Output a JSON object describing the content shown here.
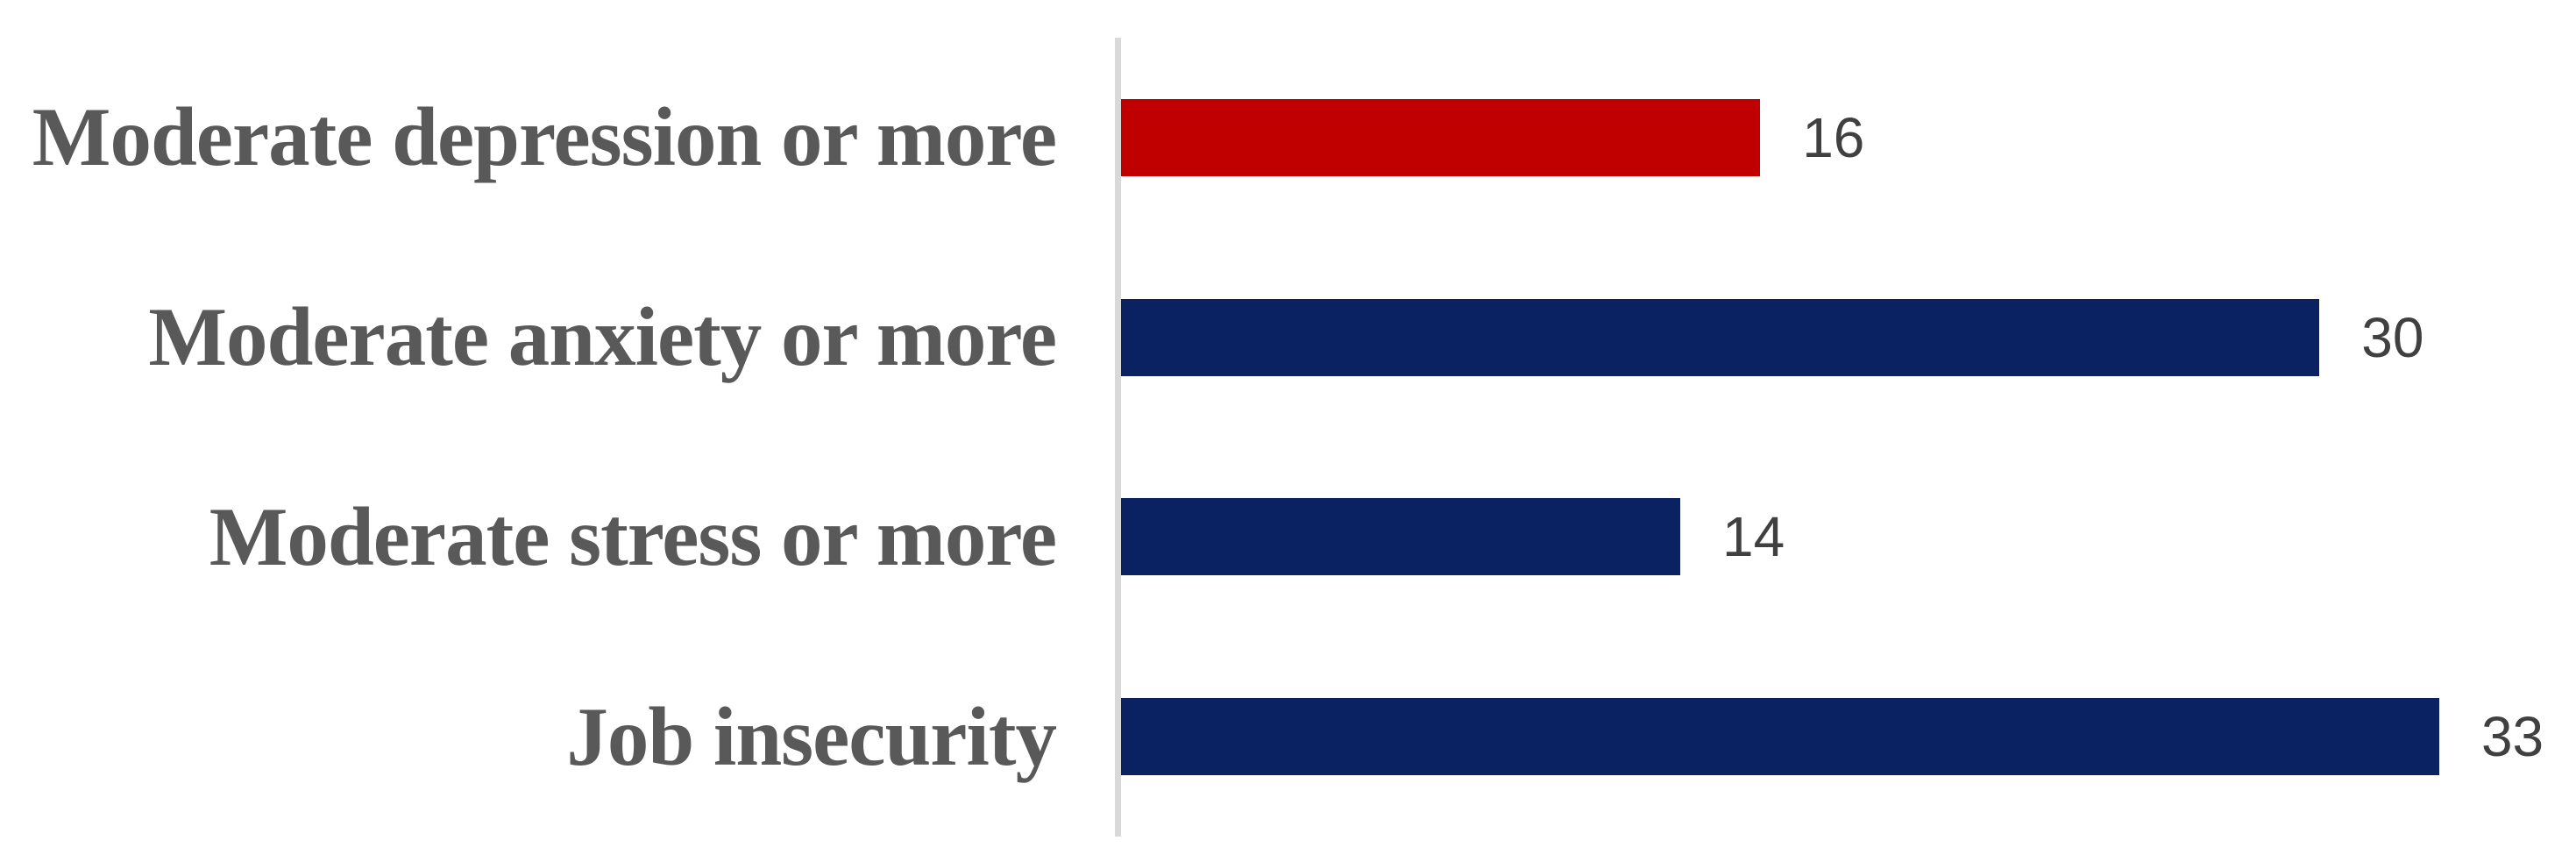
{
  "chart_data": {
    "type": "bar",
    "orientation": "horizontal",
    "title": "",
    "xlabel": "",
    "ylabel": "",
    "grid": false,
    "legend": false,
    "categories": [
      "Moderate depression or more",
      "Moderate anxiety or more",
      "Moderate stress or more",
      "Job insecurity"
    ],
    "values": [
      16,
      30,
      14,
      33
    ],
    "data_labels_shown": true,
    "xlim": [
      0,
      36.4
    ],
    "colors": {
      "bar_colors": [
        "#C00000",
        "#0A2262",
        "#0A2262",
        "#0A2262"
      ],
      "axis_line": "#D9D9D9",
      "category_label": "#595959",
      "value_label": "#404040",
      "background": "#FFFFFF"
    }
  }
}
